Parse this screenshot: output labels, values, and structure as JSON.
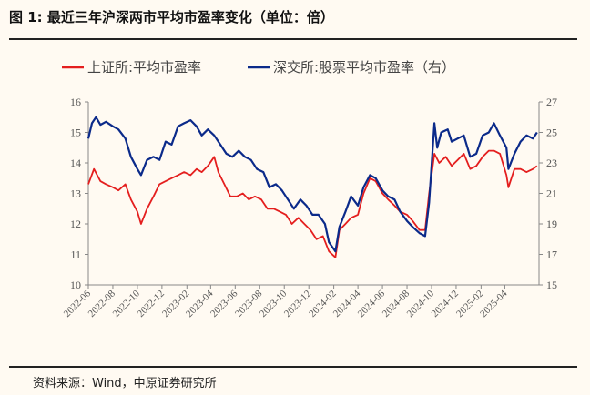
{
  "title": "图 1:  最近三年沪深两市平均市盈率变化（单位：倍）",
  "source": "资料来源：Wind，中原证券研究所",
  "chart_data": {
    "type": "line",
    "title": "最近三年沪深两市平均市盈率变化（单位：倍）",
    "legend_position": "top",
    "grid": false,
    "x_ticks": [
      "2022-06",
      "2022-08",
      "2022-10",
      "2022-12",
      "2023-02",
      "2023-04",
      "2023-06",
      "2023-08",
      "2023-10",
      "2023-12",
      "2024-02",
      "2024-04",
      "2024-06",
      "2024-08",
      "2024-10",
      "2024-12",
      "2025-02",
      "2025-04"
    ],
    "y_left": {
      "ticks": [
        "10",
        "11",
        "12",
        "13",
        "14",
        "15",
        "16"
      ],
      "lim": [
        10,
        16
      ]
    },
    "y_right": {
      "ticks": [
        "15",
        "17",
        "19",
        "21",
        "23",
        "25",
        "27"
      ],
      "lim": [
        15,
        27
      ]
    },
    "series": [
      {
        "name": "上证所:平均市盈率",
        "axis": "left",
        "color": "#e41e1e",
        "points": [
          [
            "2022-06-01",
            13.3
          ],
          [
            "2022-06-15",
            13.8
          ],
          [
            "2022-07-01",
            13.4
          ],
          [
            "2022-07-15",
            13.3
          ],
          [
            "2022-08-01",
            13.2
          ],
          [
            "2022-08-15",
            13.1
          ],
          [
            "2022-09-01",
            13.3
          ],
          [
            "2022-09-15",
            12.8
          ],
          [
            "2022-10-01",
            12.4
          ],
          [
            "2022-10-10",
            12.0
          ],
          [
            "2022-10-25",
            12.5
          ],
          [
            "2022-11-10",
            12.9
          ],
          [
            "2022-11-25",
            13.3
          ],
          [
            "2022-12-10",
            13.4
          ],
          [
            "2022-12-25",
            13.5
          ],
          [
            "2023-01-10",
            13.6
          ],
          [
            "2023-01-25",
            13.7
          ],
          [
            "2023-02-10",
            13.6
          ],
          [
            "2023-02-25",
            13.8
          ],
          [
            "2023-03-10",
            13.7
          ],
          [
            "2023-03-25",
            13.9
          ],
          [
            "2023-04-10",
            14.2
          ],
          [
            "2023-04-20",
            13.7
          ],
          [
            "2023-05-05",
            13.3
          ],
          [
            "2023-05-20",
            12.9
          ],
          [
            "2023-06-05",
            12.9
          ],
          [
            "2023-06-20",
            13.0
          ],
          [
            "2023-07-05",
            12.8
          ],
          [
            "2023-07-20",
            12.9
          ],
          [
            "2023-08-05",
            12.8
          ],
          [
            "2023-08-20",
            12.5
          ],
          [
            "2023-09-05",
            12.5
          ],
          [
            "2023-09-20",
            12.4
          ],
          [
            "2023-10-05",
            12.3
          ],
          [
            "2023-10-20",
            12.0
          ],
          [
            "2023-11-05",
            12.2
          ],
          [
            "2023-11-20",
            12.0
          ],
          [
            "2023-12-05",
            11.8
          ],
          [
            "2023-12-20",
            11.5
          ],
          [
            "2024-01-05",
            11.6
          ],
          [
            "2024-01-20",
            11.1
          ],
          [
            "2024-02-05",
            10.9
          ],
          [
            "2024-02-15",
            11.8
          ],
          [
            "2024-03-01",
            12.0
          ],
          [
            "2024-03-15",
            12.2
          ],
          [
            "2024-04-01",
            12.3
          ],
          [
            "2024-04-15",
            13.0
          ],
          [
            "2024-05-01",
            13.5
          ],
          [
            "2024-05-15",
            13.4
          ],
          [
            "2024-06-01",
            13.0
          ],
          [
            "2024-06-15",
            12.8
          ],
          [
            "2024-07-01",
            12.6
          ],
          [
            "2024-07-15",
            12.4
          ],
          [
            "2024-08-01",
            12.3
          ],
          [
            "2024-08-15",
            12.1
          ],
          [
            "2024-09-01",
            11.8
          ],
          [
            "2024-09-15",
            11.8
          ],
          [
            "2024-09-25",
            13.0
          ],
          [
            "2024-10-08",
            14.3
          ],
          [
            "2024-10-20",
            14.0
          ],
          [
            "2024-11-05",
            14.2
          ],
          [
            "2024-11-20",
            13.9
          ],
          [
            "2024-12-05",
            14.1
          ],
          [
            "2024-12-20",
            14.3
          ],
          [
            "2025-01-05",
            13.8
          ],
          [
            "2025-01-20",
            13.9
          ],
          [
            "2025-02-05",
            14.2
          ],
          [
            "2025-02-20",
            14.4
          ],
          [
            "2025-03-05",
            14.4
          ],
          [
            "2025-03-20",
            14.3
          ],
          [
            "2025-04-05",
            13.6
          ],
          [
            "2025-04-10",
            13.2
          ],
          [
            "2025-04-25",
            13.8
          ],
          [
            "2025-05-10",
            13.8
          ],
          [
            "2025-05-25",
            13.7
          ],
          [
            "2025-06-10",
            13.8
          ],
          [
            "2025-06-20",
            13.9
          ]
        ]
      },
      {
        "name": "深交所:股票平均市盈率（右）",
        "axis": "right",
        "color": "#0b2a8a",
        "points": [
          [
            "2022-06-01",
            24.6
          ],
          [
            "2022-06-10",
            25.6
          ],
          [
            "2022-06-20",
            26.0
          ],
          [
            "2022-07-01",
            25.5
          ],
          [
            "2022-07-15",
            25.7
          ],
          [
            "2022-08-01",
            25.4
          ],
          [
            "2022-08-15",
            25.2
          ],
          [
            "2022-09-01",
            24.6
          ],
          [
            "2022-09-15",
            23.4
          ],
          [
            "2022-10-01",
            22.6
          ],
          [
            "2022-10-10",
            22.2
          ],
          [
            "2022-10-25",
            23.2
          ],
          [
            "2022-11-10",
            23.4
          ],
          [
            "2022-11-25",
            23.2
          ],
          [
            "2022-12-10",
            24.4
          ],
          [
            "2022-12-25",
            24.2
          ],
          [
            "2023-01-10",
            25.4
          ],
          [
            "2023-01-25",
            25.6
          ],
          [
            "2023-02-10",
            25.8
          ],
          [
            "2023-02-25",
            25.4
          ],
          [
            "2023-03-10",
            24.8
          ],
          [
            "2023-03-25",
            25.2
          ],
          [
            "2023-04-10",
            24.8
          ],
          [
            "2023-04-25",
            24.2
          ],
          [
            "2023-05-10",
            23.6
          ],
          [
            "2023-05-25",
            23.4
          ],
          [
            "2023-06-10",
            23.8
          ],
          [
            "2023-06-25",
            23.4
          ],
          [
            "2023-07-10",
            23.2
          ],
          [
            "2023-07-25",
            22.6
          ],
          [
            "2023-08-10",
            22.4
          ],
          [
            "2023-08-25",
            21.4
          ],
          [
            "2023-09-10",
            21.6
          ],
          [
            "2023-09-25",
            21.2
          ],
          [
            "2023-10-10",
            20.6
          ],
          [
            "2023-10-25",
            20.0
          ],
          [
            "2023-11-10",
            20.6
          ],
          [
            "2023-11-25",
            20.2
          ],
          [
            "2023-12-10",
            19.6
          ],
          [
            "2023-12-25",
            19.6
          ],
          [
            "2024-01-10",
            19.0
          ],
          [
            "2024-01-20",
            17.8
          ],
          [
            "2024-02-05",
            17.2
          ],
          [
            "2024-02-15",
            18.8
          ],
          [
            "2024-03-01",
            19.8
          ],
          [
            "2024-03-15",
            20.8
          ],
          [
            "2024-04-01",
            20.2
          ],
          [
            "2024-04-15",
            21.4
          ],
          [
            "2024-05-01",
            22.2
          ],
          [
            "2024-05-15",
            22.0
          ],
          [
            "2024-06-01",
            21.2
          ],
          [
            "2024-06-15",
            20.8
          ],
          [
            "2024-07-01",
            20.6
          ],
          [
            "2024-07-15",
            19.8
          ],
          [
            "2024-08-01",
            19.2
          ],
          [
            "2024-08-15",
            18.8
          ],
          [
            "2024-09-01",
            18.4
          ],
          [
            "2024-09-15",
            18.2
          ],
          [
            "2024-09-25",
            20.4
          ],
          [
            "2024-10-08",
            25.6
          ],
          [
            "2024-10-15",
            24.0
          ],
          [
            "2024-10-25",
            25.0
          ],
          [
            "2024-11-10",
            25.2
          ],
          [
            "2024-11-20",
            24.4
          ],
          [
            "2024-12-05",
            24.6
          ],
          [
            "2024-12-20",
            24.8
          ],
          [
            "2025-01-05",
            23.4
          ],
          [
            "2025-01-20",
            23.6
          ],
          [
            "2025-02-05",
            24.8
          ],
          [
            "2025-02-20",
            25.0
          ],
          [
            "2025-03-05",
            25.6
          ],
          [
            "2025-03-20",
            24.8
          ],
          [
            "2025-04-05",
            24.0
          ],
          [
            "2025-04-10",
            22.6
          ],
          [
            "2025-04-25",
            23.6
          ],
          [
            "2025-05-10",
            24.4
          ],
          [
            "2025-05-25",
            24.8
          ],
          [
            "2025-06-10",
            24.6
          ],
          [
            "2025-06-20",
            25.0
          ]
        ]
      }
    ]
  }
}
